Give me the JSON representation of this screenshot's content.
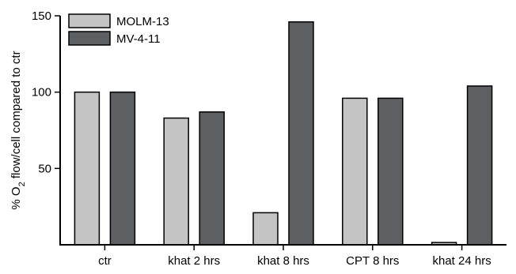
{
  "chart_data": {
    "type": "bar",
    "ylabel": "% O2 flow/cell compared to ctr",
    "ylabel_parts": {
      "prefix": "% O",
      "subscript": "2",
      "suffix": " flow/cell compared to ctr"
    },
    "ylim": [
      0,
      150
    ],
    "yticks": [
      50,
      100,
      150
    ],
    "categories": [
      "ctr",
      "khat 2 hrs",
      "khat 8 hrs",
      "CPT 8 hrs",
      "khat 24 hrs"
    ],
    "series": [
      {
        "name": "MOLM-13",
        "color": "#c4c4c4",
        "values": [
          100,
          83,
          21,
          96,
          1.5
        ]
      },
      {
        "name": "MV-4-11",
        "color": "#5e5f63",
        "values": [
          100,
          87,
          146,
          96,
          104
        ]
      }
    ],
    "legend_position": "top-left",
    "grid": false
  }
}
